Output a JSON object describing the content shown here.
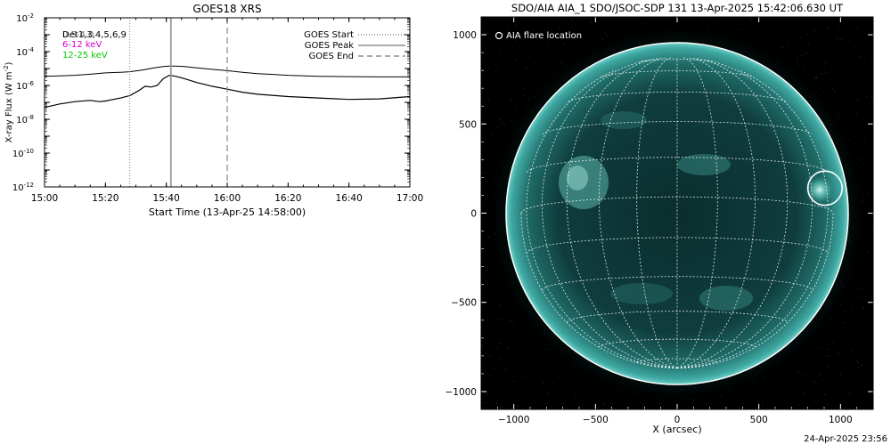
{
  "chart_data": [
    {
      "type": "line",
      "title": "GOES18 XRS",
      "xlabel": "Start Time (13-Apr-25 14:58:00)",
      "ylabel": "X-ray Flux (W m",
      "ylabel_exp": "-2",
      "ylabel_close": ")",
      "ylog": true,
      "ylim": [
        1e-12,
        0.01
      ],
      "yticks": [
        {
          "exp": "-12",
          "value": 1e-12
        },
        {
          "exp": "-10",
          "value": 1e-10
        },
        {
          "exp": "-8",
          "value": 1e-08
        },
        {
          "exp": "-6",
          "value": 1e-06
        },
        {
          "exp": "-4",
          "value": 0.0001
        },
        {
          "exp": "-2",
          "value": 0.01
        }
      ],
      "ytick_base": "10",
      "x_minutes_range": [
        900,
        1020
      ],
      "xticks": [
        {
          "label": "15:00",
          "min": 900
        },
        {
          "label": "15:20",
          "min": 920
        },
        {
          "label": "15:40",
          "min": 940
        },
        {
          "label": "16:00",
          "min": 960
        },
        {
          "label": "16:20",
          "min": 980
        },
        {
          "label": "16:40",
          "min": 1000
        },
        {
          "label": "17:00",
          "min": 1020
        }
      ],
      "channel_labels": [
        {
          "text": "Det1,3,4,5,6,9",
          "color": "#000000"
        },
        {
          "text": "6-12 keV",
          "color": "#cc00cc"
        },
        {
          "text": "12-25 keV",
          "color": "#00cc00"
        }
      ],
      "channel_label_overlap": "0.5-4.0",
      "legend": [
        {
          "label": "GOES Start",
          "style": "dotted"
        },
        {
          "label": "GOES Peak",
          "style": "solid"
        },
        {
          "label": "GOES End",
          "style": "dashed"
        }
      ],
      "legend_position": "top-right",
      "markers": {
        "start_min": 928,
        "peak_min": 941.5,
        "end_min": 960
      },
      "series": [
        {
          "color": "#000000",
          "x": [
            900,
            905,
            910,
            915,
            920,
            925,
            928,
            932,
            936,
            939,
            941,
            943,
            946,
            950,
            955,
            960,
            965,
            970,
            975,
            980,
            990,
            1000,
            1010,
            1020
          ],
          "y": [
            3.5e-06,
            3.7e-06,
            4e-06,
            4.6e-06,
            5.5e-06,
            6e-06,
            6.5e-06,
            8e-06,
            1.1e-05,
            1.3e-05,
            1.4e-05,
            1.4e-05,
            1.3e-05,
            1.1e-05,
            9e-06,
            7.5e-06,
            6e-06,
            5e-06,
            4.5e-06,
            4e-06,
            3.5e-06,
            3.3e-06,
            3.2e-06,
            3.2e-06
          ]
        },
        {
          "color": "#000000",
          "x": [
            900,
            905,
            910,
            915,
            918,
            920,
            925,
            928,
            931,
            933,
            935,
            937,
            939,
            941,
            943,
            946,
            950,
            955,
            960,
            965,
            970,
            980,
            990,
            1000,
            1010,
            1020
          ],
          "y": [
            5e-08,
            8e-08,
            1.1e-07,
            1.3e-07,
            1.1e-07,
            1.2e-07,
            1.8e-07,
            2.5e-07,
            5e-07,
            9e-07,
            8e-07,
            1e-06,
            2.5e-06,
            4e-06,
            3.5e-06,
            2.5e-06,
            1.5e-06,
            9e-07,
            6e-07,
            4e-07,
            3e-07,
            2.2e-07,
            1.8e-07,
            1.5e-07,
            1.6e-07,
            2.2e-07
          ]
        }
      ]
    },
    {
      "type": "image",
      "title": "SDO/AIA AIA_1 SDO/JSOC-SDP 131 13-Apr-2025 15:42:06.630 UT",
      "xlabel": "X (arcsec)",
      "xlim": [
        -1200,
        1200
      ],
      "ylim": [
        -1100,
        1100
      ],
      "xticks": [
        -1000,
        -500,
        0,
        500,
        1000
      ],
      "yticks": [
        -1000,
        -500,
        0,
        500,
        1000
      ],
      "solar_radius_arcsec": 955,
      "legend": [
        {
          "label": "AIA flare location",
          "symbol": "circle"
        }
      ],
      "flare_location_arcsec": [
        905,
        140
      ],
      "flare_circle_radius_arcsec": 105,
      "colormap": "teal"
    }
  ],
  "footer": {
    "timestamp": "24-Apr-2025 23:56"
  }
}
